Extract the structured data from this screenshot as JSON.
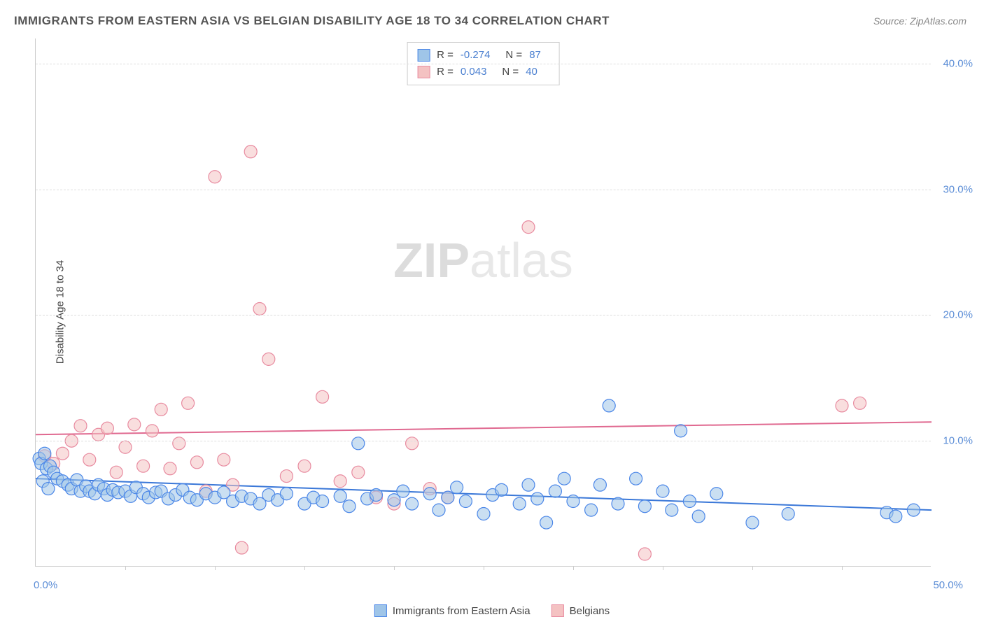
{
  "title": "IMMIGRANTS FROM EASTERN ASIA VS BELGIAN DISABILITY AGE 18 TO 34 CORRELATION CHART",
  "source": "Source: ZipAtlas.com",
  "ylabel": "Disability Age 18 to 34",
  "watermark_bold": "ZIP",
  "watermark_light": "atlas",
  "chart": {
    "type": "scatter",
    "xlim": [
      0,
      50
    ],
    "ylim": [
      0,
      42
    ],
    "x_axis_label_min": "0.0%",
    "x_axis_label_max": "50.0%",
    "y_ticks": [
      {
        "value": 10,
        "label": "10.0%"
      },
      {
        "value": 20,
        "label": "20.0%"
      },
      {
        "value": 30,
        "label": "30.0%"
      },
      {
        "value": 40,
        "label": "40.0%"
      }
    ],
    "x_tick_positions": [
      5,
      10,
      15,
      20,
      25,
      30,
      35,
      40,
      45
    ],
    "grid_color": "#dddddd",
    "background_color": "#ffffff",
    "marker_radius": 9,
    "marker_stroke_width": 1.2,
    "line_width": 2
  },
  "series": [
    {
      "name": "Immigrants from Eastern Asia",
      "fill_color": "#9fc5e8",
      "stroke_color": "#4a86e8",
      "fill_opacity": 0.55,
      "line_color": "#3b78d8",
      "trend": {
        "y_at_x0": 7.0,
        "y_at_x50": 4.5
      },
      "R": "-0.274",
      "N": "87",
      "points": [
        [
          0.2,
          8.6
        ],
        [
          0.3,
          8.2
        ],
        [
          0.5,
          9.0
        ],
        [
          0.6,
          7.8
        ],
        [
          0.8,
          8.0
        ],
        [
          1.0,
          7.5
        ],
        [
          0.4,
          6.8
        ],
        [
          0.7,
          6.2
        ],
        [
          1.2,
          7.0
        ],
        [
          1.5,
          6.8
        ],
        [
          1.8,
          6.5
        ],
        [
          2.0,
          6.2
        ],
        [
          2.3,
          6.9
        ],
        [
          2.5,
          6.0
        ],
        [
          2.8,
          6.4
        ],
        [
          3.0,
          6.0
        ],
        [
          3.3,
          5.8
        ],
        [
          3.5,
          6.5
        ],
        [
          3.8,
          6.2
        ],
        [
          4.0,
          5.7
        ],
        [
          4.3,
          6.1
        ],
        [
          4.6,
          5.9
        ],
        [
          5.0,
          6.0
        ],
        [
          5.3,
          5.6
        ],
        [
          5.6,
          6.3
        ],
        [
          6.0,
          5.8
        ],
        [
          6.3,
          5.5
        ],
        [
          6.7,
          5.9
        ],
        [
          7.0,
          6.0
        ],
        [
          7.4,
          5.4
        ],
        [
          7.8,
          5.7
        ],
        [
          8.2,
          6.1
        ],
        [
          8.6,
          5.5
        ],
        [
          9.0,
          5.3
        ],
        [
          9.5,
          5.8
        ],
        [
          10.0,
          5.5
        ],
        [
          10.5,
          5.9
        ],
        [
          11.0,
          5.2
        ],
        [
          11.5,
          5.6
        ],
        [
          12.0,
          5.4
        ],
        [
          12.5,
          5.0
        ],
        [
          13.0,
          5.7
        ],
        [
          13.5,
          5.3
        ],
        [
          14.0,
          5.8
        ],
        [
          15.0,
          5.0
        ],
        [
          15.5,
          5.5
        ],
        [
          16.0,
          5.2
        ],
        [
          17.0,
          5.6
        ],
        [
          17.5,
          4.8
        ],
        [
          18.0,
          9.8
        ],
        [
          18.5,
          5.4
        ],
        [
          19.0,
          5.7
        ],
        [
          20.0,
          5.3
        ],
        [
          20.5,
          6.0
        ],
        [
          21.0,
          5.0
        ],
        [
          22.0,
          5.8
        ],
        [
          22.5,
          4.5
        ],
        [
          23.0,
          5.5
        ],
        [
          23.5,
          6.3
        ],
        [
          24.0,
          5.2
        ],
        [
          25.0,
          4.2
        ],
        [
          25.5,
          5.7
        ],
        [
          26.0,
          6.1
        ],
        [
          27.0,
          5.0
        ],
        [
          27.5,
          6.5
        ],
        [
          28.0,
          5.4
        ],
        [
          28.5,
          3.5
        ],
        [
          29.0,
          6.0
        ],
        [
          29.5,
          7.0
        ],
        [
          30.0,
          5.2
        ],
        [
          31.0,
          4.5
        ],
        [
          31.5,
          6.5
        ],
        [
          32.0,
          12.8
        ],
        [
          32.5,
          5.0
        ],
        [
          33.5,
          7.0
        ],
        [
          34.0,
          4.8
        ],
        [
          35.0,
          6.0
        ],
        [
          35.5,
          4.5
        ],
        [
          36.0,
          10.8
        ],
        [
          36.5,
          5.2
        ],
        [
          37.0,
          4.0
        ],
        [
          38.0,
          5.8
        ],
        [
          40.0,
          3.5
        ],
        [
          42.0,
          4.2
        ],
        [
          47.5,
          4.3
        ],
        [
          48.0,
          4.0
        ],
        [
          49.0,
          4.5
        ]
      ]
    },
    {
      "name": "Belgians",
      "fill_color": "#f4c2c2",
      "stroke_color": "#e88ba0",
      "fill_opacity": 0.55,
      "line_color": "#e06990",
      "trend": {
        "y_at_x0": 10.5,
        "y_at_x50": 11.5
      },
      "R": "0.043",
      "N": "40",
      "points": [
        [
          0.5,
          8.8
        ],
        [
          1.0,
          8.2
        ],
        [
          1.5,
          9.0
        ],
        [
          2.0,
          10.0
        ],
        [
          2.5,
          11.2
        ],
        [
          3.0,
          8.5
        ],
        [
          3.5,
          10.5
        ],
        [
          4.0,
          11.0
        ],
        [
          4.5,
          7.5
        ],
        [
          5.0,
          9.5
        ],
        [
          5.5,
          11.3
        ],
        [
          6.0,
          8.0
        ],
        [
          6.5,
          10.8
        ],
        [
          7.0,
          12.5
        ],
        [
          7.5,
          7.8
        ],
        [
          8.0,
          9.8
        ],
        [
          8.5,
          13.0
        ],
        [
          9.0,
          8.3
        ],
        [
          9.5,
          6.0
        ],
        [
          10.0,
          31.0
        ],
        [
          10.5,
          8.5
        ],
        [
          11.0,
          6.5
        ],
        [
          11.5,
          1.5
        ],
        [
          12.0,
          33.0
        ],
        [
          12.5,
          20.5
        ],
        [
          13.0,
          16.5
        ],
        [
          14.0,
          7.2
        ],
        [
          15.0,
          8.0
        ],
        [
          16.0,
          13.5
        ],
        [
          17.0,
          6.8
        ],
        [
          18.0,
          7.5
        ],
        [
          19.0,
          5.5
        ],
        [
          20.0,
          5.0
        ],
        [
          21.0,
          9.8
        ],
        [
          22.0,
          6.2
        ],
        [
          23.0,
          5.5
        ],
        [
          27.5,
          27.0
        ],
        [
          34.0,
          1.0
        ],
        [
          45.0,
          12.8
        ],
        [
          46.0,
          13.0
        ]
      ]
    }
  ],
  "stats_legend": {
    "rows": [
      {
        "swatch_fill": "#9fc5e8",
        "swatch_stroke": "#4a86e8",
        "R_label": "R =",
        "R_value": "-0.274",
        "N_label": "N =",
        "N_value": "87"
      },
      {
        "swatch_fill": "#f4c2c2",
        "swatch_stroke": "#e88ba0",
        "R_label": "R =",
        "R_value": "0.043",
        "N_label": "N =",
        "N_value": "40"
      }
    ]
  },
  "bottom_legend": [
    {
      "swatch_fill": "#9fc5e8",
      "swatch_stroke": "#4a86e8",
      "label": "Immigrants from Eastern Asia"
    },
    {
      "swatch_fill": "#f4c2c2",
      "swatch_stroke": "#e88ba0",
      "label": "Belgians"
    }
  ]
}
